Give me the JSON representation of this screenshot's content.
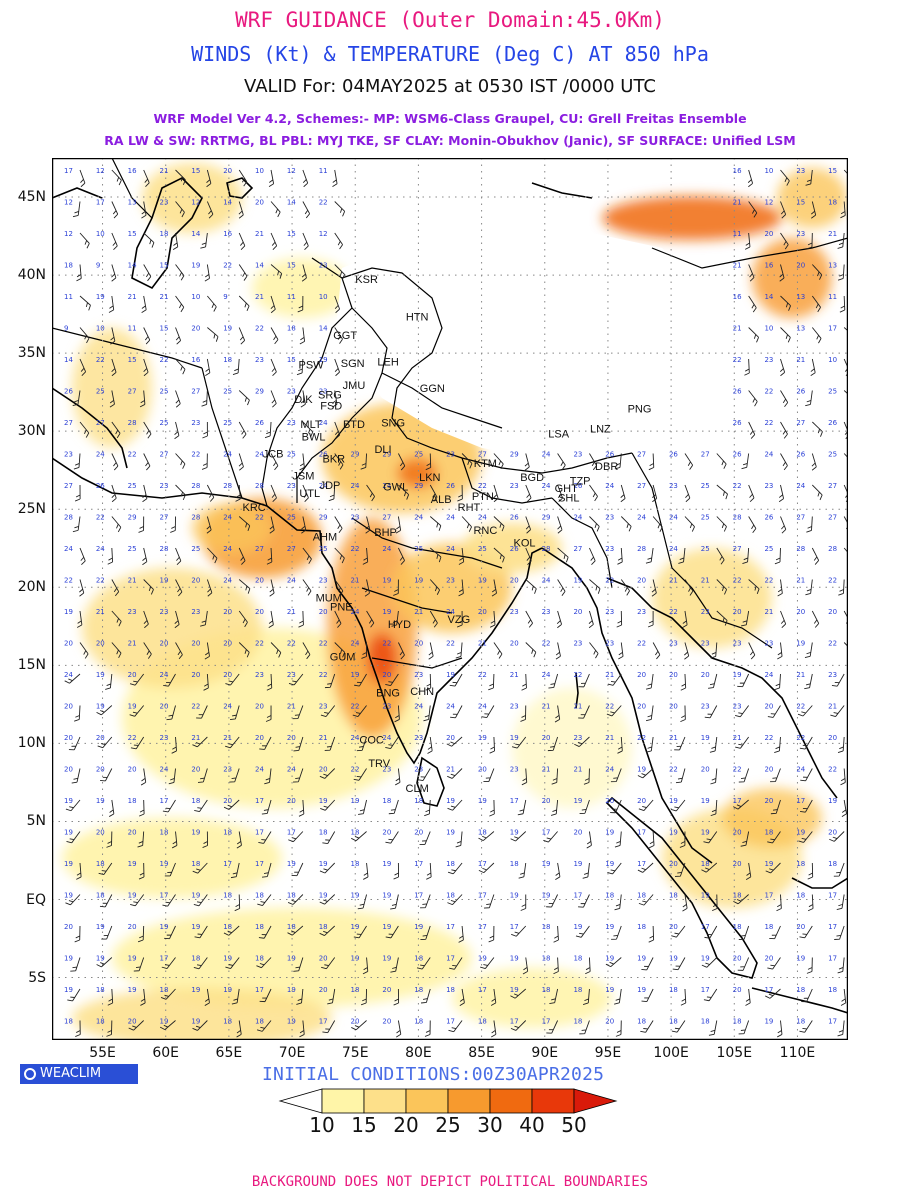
{
  "header": {
    "title": "WRF GUIDANCE (Outer Domain:45.0Km)",
    "subtitle": "WINDS (Kt) & TEMPERATURE (Deg C) AT 850 hPa",
    "valid": "VALID For: 04MAY2025 at 0530 IST /0000 UTC",
    "model_line1": "WRF Model Ver 4.2, Schemes:- MP: WSM6-Class Graupel, CU: Grell Freitas Ensemble",
    "model_line2": "RA LW & SW: RRTMG, BL PBL: MYJ TKE, SF CLAY: Monin-Obukhov (Janic), SF SURFACE: Unified LSM"
  },
  "map": {
    "lon_range": [
      51,
      114
    ],
    "lat_range": [
      -9,
      47.5
    ],
    "lon_labels": [
      "55E",
      "60E",
      "65E",
      "70E",
      "75E",
      "80E",
      "85E",
      "90E",
      "95E",
      "100E",
      "105E",
      "110E"
    ],
    "lon_values": [
      55,
      60,
      65,
      70,
      75,
      80,
      85,
      90,
      95,
      100,
      105,
      110
    ],
    "lat_labels": [
      "45N",
      "40N",
      "35N",
      "30N",
      "25N",
      "20N",
      "15N",
      "10N",
      "5N",
      "EQ",
      "5S"
    ],
    "lat_values": [
      45,
      40,
      35,
      30,
      25,
      20,
      15,
      10,
      5,
      0,
      -5
    ],
    "stations": [
      {
        "name": "KSR",
        "lon": 75.9,
        "lat": 39.5
      },
      {
        "name": "HTN",
        "lon": 79.9,
        "lat": 37.1
      },
      {
        "name": "GGT",
        "lon": 74.2,
        "lat": 35.9
      },
      {
        "name": "PSW",
        "lon": 71.5,
        "lat": 34.0
      },
      {
        "name": "SGN",
        "lon": 74.8,
        "lat": 34.1
      },
      {
        "name": "LEH",
        "lon": 77.6,
        "lat": 34.2
      },
      {
        "name": "JMU",
        "lon": 74.9,
        "lat": 32.7
      },
      {
        "name": "GGN",
        "lon": 81.1,
        "lat": 32.5
      },
      {
        "name": "DIK",
        "lon": 70.9,
        "lat": 31.8
      },
      {
        "name": "SRG",
        "lon": 73.0,
        "lat": 32.1
      },
      {
        "name": "FSD",
        "lon": 73.1,
        "lat": 31.4
      },
      {
        "name": "MLT",
        "lon": 71.5,
        "lat": 30.2
      },
      {
        "name": "BTD",
        "lon": 74.9,
        "lat": 30.2
      },
      {
        "name": "SNG",
        "lon": 78.0,
        "lat": 30.3
      },
      {
        "name": "BWL",
        "lon": 71.7,
        "lat": 29.4
      },
      {
        "name": "LSA",
        "lon": 91.1,
        "lat": 29.6
      },
      {
        "name": "LNZ",
        "lon": 94.4,
        "lat": 29.9
      },
      {
        "name": "PNG",
        "lon": 97.5,
        "lat": 31.2
      },
      {
        "name": "JCB",
        "lon": 68.5,
        "lat": 28.3
      },
      {
        "name": "DLI",
        "lon": 77.2,
        "lat": 28.6
      },
      {
        "name": "BKR",
        "lon": 73.3,
        "lat": 28.0
      },
      {
        "name": "JSM",
        "lon": 70.9,
        "lat": 26.9
      },
      {
        "name": "LKN",
        "lon": 80.9,
        "lat": 26.8
      },
      {
        "name": "KTM",
        "lon": 85.3,
        "lat": 27.7
      },
      {
        "name": "JDP",
        "lon": 73.0,
        "lat": 26.3
      },
      {
        "name": "GWL",
        "lon": 78.2,
        "lat": 26.2
      },
      {
        "name": "GHT",
        "lon": 91.7,
        "lat": 26.1
      },
      {
        "name": "TZP",
        "lon": 92.8,
        "lat": 26.6
      },
      {
        "name": "DBR",
        "lon": 94.9,
        "lat": 27.5
      },
      {
        "name": "BGD",
        "lon": 89.0,
        "lat": 26.8
      },
      {
        "name": "UTL",
        "lon": 71.4,
        "lat": 25.8
      },
      {
        "name": "ALB",
        "lon": 81.8,
        "lat": 25.4
      },
      {
        "name": "PTN",
        "lon": 85.1,
        "lat": 25.6
      },
      {
        "name": "SHL",
        "lon": 91.9,
        "lat": 25.5
      },
      {
        "name": "KRC",
        "lon": 67.0,
        "lat": 24.9
      },
      {
        "name": "RHT",
        "lon": 84.0,
        "lat": 24.9
      },
      {
        "name": "BHP",
        "lon": 77.4,
        "lat": 23.3
      },
      {
        "name": "AHM",
        "lon": 72.6,
        "lat": 23.0
      },
      {
        "name": "RNC",
        "lon": 85.3,
        "lat": 23.4
      },
      {
        "name": "KOL",
        "lon": 88.4,
        "lat": 22.6
      },
      {
        "name": "MUM",
        "lon": 72.9,
        "lat": 19.1
      },
      {
        "name": "PNE",
        "lon": 73.9,
        "lat": 18.5
      },
      {
        "name": "HYD",
        "lon": 78.5,
        "lat": 17.4
      },
      {
        "name": "VZG",
        "lon": 83.2,
        "lat": 17.7
      },
      {
        "name": "GUM",
        "lon": 74.0,
        "lat": 15.3
      },
      {
        "name": "CHN",
        "lon": 80.3,
        "lat": 13.1
      },
      {
        "name": "BNG",
        "lon": 77.6,
        "lat": 13.0
      },
      {
        "name": "COC",
        "lon": 76.3,
        "lat": 10.0
      },
      {
        "name": "TRV",
        "lon": 76.9,
        "lat": 8.5
      },
      {
        "name": "CLM",
        "lon": 79.9,
        "lat": 6.9
      }
    ]
  },
  "scale": {
    "labels": [
      "10",
      "15",
      "20",
      "25",
      "30",
      "40",
      "50"
    ],
    "colors": [
      "#ffffff",
      "#fff5a8",
      "#fde08a",
      "#fbc55a",
      "#f79a2e",
      "#f06a10",
      "#e8380a",
      "#d91a0a"
    ]
  },
  "initial_conditions": "INITIAL CONDITIONS:00Z30APR2025",
  "logo": "WEACLIM",
  "footer": "BACKGROUND DOES NOT DEPICT POLITICAL BOUNDARIES",
  "colors": {
    "title": "#e8197f",
    "subtitle": "#2545e6",
    "model_text": "#8b1de0",
    "temp_numbers": "#2a3fd6",
    "grid": "#888888"
  }
}
